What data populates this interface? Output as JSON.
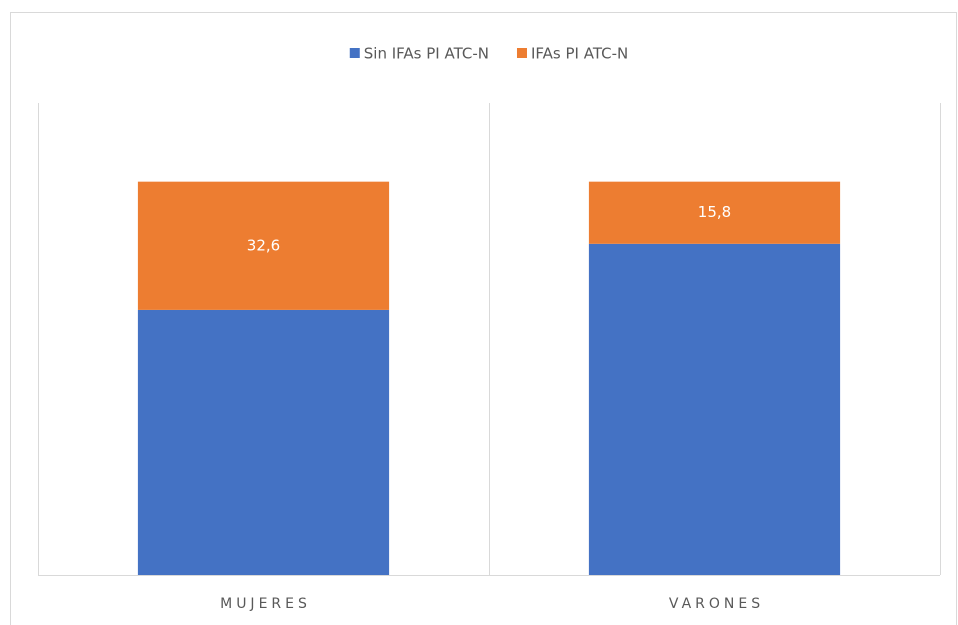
{
  "chart_data": {
    "type": "stacked_bar",
    "categories": [
      "MUJERES",
      "VARONES"
    ],
    "series": [
      {
        "name": "Sin IFAs PI ATC-N",
        "color": "#4472c4",
        "values": [
          67.4,
          84.2
        ]
      },
      {
        "name": "IFAs PI ATC-N",
        "color": "#ed7d31",
        "values": [
          32.6,
          15.8
        ],
        "value_labels": [
          "32,6",
          "15,8"
        ]
      }
    ],
    "ylim": [
      0,
      120
    ]
  }
}
